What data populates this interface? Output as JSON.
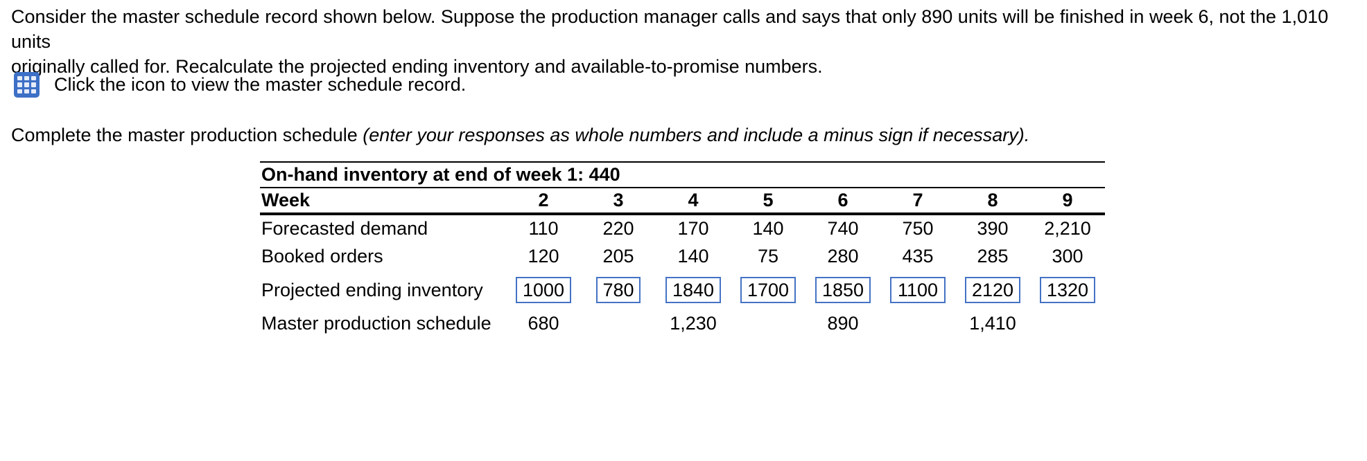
{
  "problem": {
    "statement_line1": "Consider the master schedule record shown below. Suppose the production manager calls and says that only 890 units will be finished in week 6, not the 1,010 units",
    "statement_line2": "originally called for. Recalculate the projected ending inventory and available-to-promise numbers.",
    "icon_caption": "Click the icon to view the master schedule record.",
    "instruction_regular": "Complete the master production schedule ",
    "instruction_italic": "(enter your responses as whole numbers and include a minus sign if necessary)."
  },
  "colors": {
    "icon_blue": "#3d70c6",
    "icon_cell": "#e6edfa",
    "input_border_blue": "#4472c4",
    "text": "#000000",
    "background": "#ffffff"
  },
  "icons": {
    "master_schedule_icon": "table-grid-icon"
  },
  "schedule_table": {
    "title": "On-hand inventory at end of week 1: 440",
    "week_header_label": "Week",
    "week_numbers": [
      "2",
      "3",
      "4",
      "5",
      "6",
      "7",
      "8",
      "9"
    ],
    "rows": {
      "forecasted_demand": {
        "label": "Forecasted demand",
        "values": [
          "110",
          "220",
          "170",
          "140",
          "740",
          "750",
          "390",
          "2,210"
        ]
      },
      "booked_orders": {
        "label": "Booked orders",
        "values": [
          "120",
          "205",
          "140",
          "75",
          "280",
          "435",
          "285",
          "300"
        ]
      },
      "projected_ending_inventory": {
        "label": "Projected ending inventory",
        "values": [
          "1000",
          "780",
          "1840",
          "1700",
          "1850",
          "1100",
          "2120",
          "1320"
        ]
      },
      "master_production_schedule": {
        "label": "Master production schedule",
        "values": [
          "680",
          "",
          "1,230",
          "",
          "890",
          "",
          "1,410",
          ""
        ]
      }
    }
  }
}
